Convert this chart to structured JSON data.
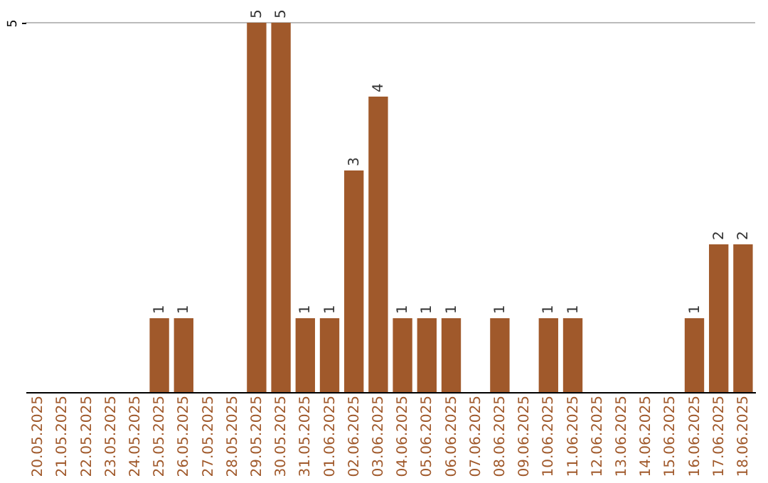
{
  "chart_data": {
    "type": "bar",
    "categories": [
      "20.05.2025",
      "21.05.2025",
      "22.05.2025",
      "23.05.2025",
      "24.05.2025",
      "25.05.2025",
      "26.05.2025",
      "27.05.2025",
      "28.05.2025",
      "29.05.2025",
      "30.05.2025",
      "31.05.2025",
      "01.06.2025",
      "02.06.2025",
      "03.06.2025",
      "04.06.2025",
      "05.06.2025",
      "06.06.2025",
      "07.06.2025",
      "08.06.2025",
      "09.06.2025",
      "10.06.2025",
      "11.06.2025",
      "12.06.2025",
      "13.06.2025",
      "14.06.2025",
      "15.06.2025",
      "16.06.2025",
      "17.06.2025",
      "18.06.2025"
    ],
    "values": [
      0,
      0,
      0,
      0,
      0,
      1,
      1,
      0,
      0,
      5,
      5,
      1,
      1,
      3,
      4,
      1,
      1,
      1,
      0,
      1,
      0,
      1,
      1,
      0,
      0,
      0,
      0,
      1,
      2,
      2
    ],
    "value_labels": [
      null,
      null,
      null,
      null,
      null,
      "1",
      "1",
      null,
      null,
      "5",
      "5",
      "1",
      "1",
      "3",
      "4",
      "1",
      "1",
      "1",
      null,
      "1",
      null,
      "1",
      "1",
      null,
      null,
      null,
      null,
      "1",
      "2",
      "2"
    ],
    "color": "#a0592b",
    "ylim": [
      0,
      5
    ],
    "yticks": [
      5
    ],
    "ref_lines": [
      {
        "axis": "y",
        "value": 5,
        "color": "#bbbbbb"
      }
    ]
  }
}
